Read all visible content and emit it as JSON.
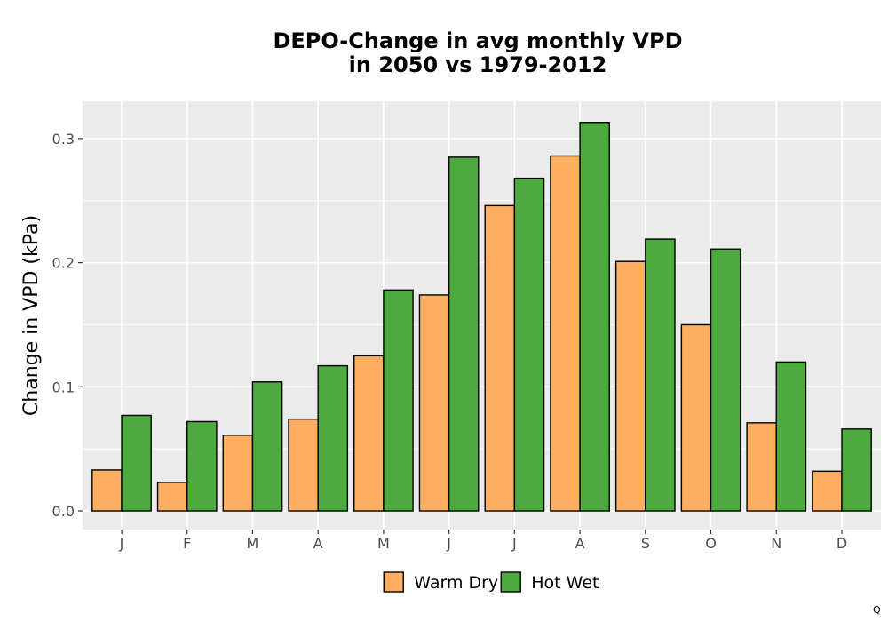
{
  "chart_data": {
    "type": "bar",
    "title": "DEPO-Change in avg monthly VPD",
    "subtitle": "in 2050 vs 1979-2012",
    "xlabel": "",
    "ylabel": "Change in VPD (kPa)",
    "ylim": [
      -0.015,
      0.33
    ],
    "yticks": [
      0.0,
      0.1,
      0.2,
      0.3
    ],
    "ytick_labels": [
      "0.0",
      "0.1",
      "0.2",
      "0.3"
    ],
    "grid": true,
    "legend_position": "bottom",
    "categories": [
      "J",
      "F",
      "M",
      "A",
      "M",
      "J",
      "J",
      "A",
      "S",
      "O",
      "N",
      "D"
    ],
    "series": [
      {
        "name": "Warm Dry",
        "color": "#FDAE61",
        "values": [
          0.033,
          0.023,
          0.061,
          0.074,
          0.125,
          0.174,
          0.246,
          0.286,
          0.201,
          0.15,
          0.071,
          0.032
        ]
      },
      {
        "name": "Hot Wet",
        "color": "#4DAA3F",
        "values": [
          0.077,
          0.072,
          0.104,
          0.117,
          0.178,
          0.285,
          0.268,
          0.313,
          0.219,
          0.211,
          0.12,
          0.066
        ]
      }
    ]
  },
  "corner_mark": "Q"
}
